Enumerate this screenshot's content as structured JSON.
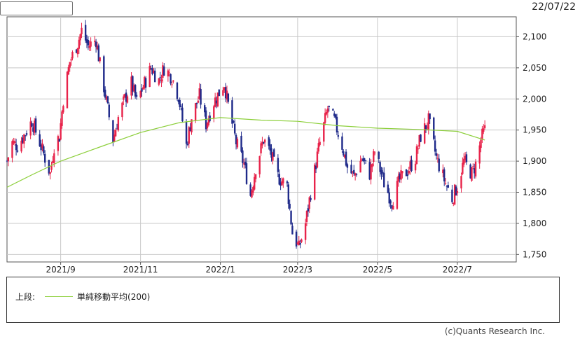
{
  "header": {
    "date": "22/07/22",
    "select_value": ""
  },
  "legend": {
    "section_label": "上段:",
    "ma_label": "単純移動平均(200)"
  },
  "credit": "(c)Quants Research Inc.",
  "colors": {
    "up": "#e8234a",
    "down": "#1f2a8a",
    "ma": "#8ccf3a",
    "grid": "#c8c8c8"
  },
  "chart_data": {
    "type": "candlestick",
    "x_tick_labels": [
      "2021/9",
      "2021/11",
      "2022/1",
      "2022/3",
      "2022/5",
      "2022/7"
    ],
    "y_tick_labels": [
      "2,100",
      "2,050",
      "2,000",
      "1,950",
      "1,900",
      "1,850",
      "1,800",
      "1,750"
    ],
    "y_ticks": [
      2100,
      2050,
      2000,
      1950,
      1900,
      1850,
      1800,
      1750
    ],
    "ylim": [
      1738,
      2132
    ],
    "x_range": [
      "2021-07-22",
      "2022-08-15"
    ],
    "grid": true,
    "close_series": [
      [
        "2021-07-22",
        1900
      ],
      [
        "2021-07-26",
        1930
      ],
      [
        "2021-07-30",
        1925
      ],
      [
        "2021-08-05",
        1945
      ],
      [
        "2021-08-10",
        1965
      ],
      [
        "2021-08-16",
        1930
      ],
      [
        "2021-08-20",
        1905
      ],
      [
        "2021-08-24",
        1880
      ],
      [
        "2021-08-27",
        1925
      ],
      [
        "2021-08-31",
        1940
      ],
      [
        "2021-09-03",
        2000
      ],
      [
        "2021-09-08",
        2060
      ],
      [
        "2021-09-14",
        2090
      ],
      [
        "2021-09-17",
        2110
      ],
      [
        "2021-09-22",
        2085
      ],
      [
        "2021-09-28",
        2095
      ],
      [
        "2021-10-01",
        2055
      ],
      [
        "2021-10-06",
        1995
      ],
      [
        "2021-10-11",
        1935
      ],
      [
        "2021-10-15",
        1970
      ],
      [
        "2021-10-20",
        2000
      ],
      [
        "2021-10-25",
        2025
      ],
      [
        "2021-10-29",
        1995
      ],
      [
        "2021-11-04",
        2025
      ],
      [
        "2021-11-09",
        2050
      ],
      [
        "2021-11-15",
        2030
      ],
      [
        "2021-11-19",
        2050
      ],
      [
        "2021-11-25",
        2035
      ],
      [
        "2021-11-30",
        2005
      ],
      [
        "2021-12-06",
        1925
      ],
      [
        "2021-12-10",
        1970
      ],
      [
        "2021-12-16",
        2005
      ],
      [
        "2021-12-21",
        1960
      ],
      [
        "2021-12-27",
        1995
      ],
      [
        "2022-01-04",
        2025
      ],
      [
        "2022-01-07",
        1990
      ],
      [
        "2022-01-13",
        1930
      ],
      [
        "2022-01-19",
        1895
      ],
      [
        "2022-01-24",
        1845
      ],
      [
        "2022-01-28",
        1890
      ],
      [
        "2022-02-03",
        1935
      ],
      [
        "2022-02-08",
        1915
      ],
      [
        "2022-02-14",
        1875
      ],
      [
        "2022-02-21",
        1860
      ],
      [
        "2022-02-25",
        1785
      ],
      [
        "2022-03-02",
        1760
      ],
      [
        "2022-03-07",
        1800
      ],
      [
        "2022-03-11",
        1850
      ],
      [
        "2022-03-17",
        1920
      ],
      [
        "2022-03-24",
        1985
      ],
      [
        "2022-03-29",
        1965
      ],
      [
        "2022-04-04",
        1925
      ],
      [
        "2022-04-08",
        1890
      ],
      [
        "2022-04-13",
        1875
      ],
      [
        "2022-04-19",
        1905
      ],
      [
        "2022-04-25",
        1880
      ],
      [
        "2022-04-29",
        1915
      ],
      [
        "2022-05-06",
        1865
      ],
      [
        "2022-05-12",
        1835
      ],
      [
        "2022-05-18",
        1870
      ],
      [
        "2022-05-24",
        1885
      ],
      [
        "2022-05-30",
        1905
      ],
      [
        "2022-06-03",
        1940
      ],
      [
        "2022-06-09",
        1965
      ],
      [
        "2022-06-15",
        1905
      ],
      [
        "2022-06-21",
        1870
      ],
      [
        "2022-06-27",
        1840
      ],
      [
        "2022-07-01",
        1860
      ],
      [
        "2022-07-06",
        1900
      ],
      [
        "2022-07-12",
        1880
      ],
      [
        "2022-07-16",
        1900
      ],
      [
        "2022-07-19",
        1935
      ],
      [
        "2022-07-22",
        1950
      ]
    ],
    "sma200_series": [
      [
        "2021-07-22",
        1858
      ],
      [
        "2021-08-10",
        1878
      ],
      [
        "2021-09-01",
        1900
      ],
      [
        "2021-09-30",
        1922
      ],
      [
        "2021-11-01",
        1946
      ],
      [
        "2021-12-01",
        1962
      ],
      [
        "2022-01-01",
        1970
      ],
      [
        "2022-02-01",
        1966
      ],
      [
        "2022-03-01",
        1964
      ],
      [
        "2022-04-01",
        1957
      ],
      [
        "2022-05-01",
        1953
      ],
      [
        "2022-06-01",
        1951
      ],
      [
        "2022-07-01",
        1948
      ],
      [
        "2022-07-22",
        1934
      ]
    ]
  }
}
